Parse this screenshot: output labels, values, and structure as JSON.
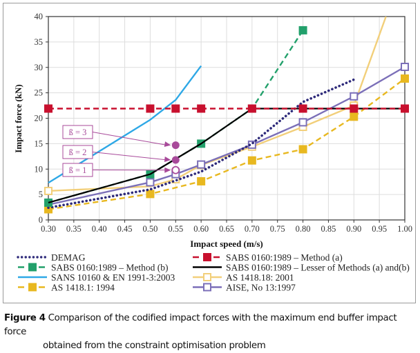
{
  "chart_data": {
    "type": "line",
    "title": "",
    "xlabel": "Impact speed (m/s)",
    "ylabel": "Impact force (kN)",
    "xlim": [
      0.3,
      1.0
    ],
    "ylim": [
      0,
      40
    ],
    "xticks": [
      "0.30",
      "0.35",
      "0.40",
      "0.45",
      "0.50",
      "0.55",
      "0.60",
      "0.65",
      "0.70",
      "0.75",
      "0.80",
      "0.85",
      "0.90",
      "0.95",
      "1.00"
    ],
    "yticks": [
      "0",
      "5",
      "10",
      "15",
      "20",
      "25",
      "30",
      "35",
      "40"
    ],
    "grid": true,
    "legend_position": "bottom",
    "series": [
      {
        "name": "DEMAG",
        "color": "#2e2a7a",
        "style": "dotted",
        "marker": "none",
        "x": [
          0.3,
          0.5,
          0.6,
          0.7,
          0.8,
          0.9
        ],
        "y": [
          2.4,
          6.0,
          9.5,
          15.0,
          23.2,
          27.6
        ]
      },
      {
        "name": "SABS 0160:1989 – Method (a)",
        "color": "#c8102e",
        "style": "dashed",
        "marker": "filled-square",
        "x": [
          0.3,
          0.5,
          0.55,
          0.6,
          0.7,
          0.8,
          0.9,
          1.0
        ],
        "y": [
          21.9,
          21.9,
          21.9,
          21.9,
          21.9,
          21.9,
          21.9,
          21.9
        ]
      },
      {
        "name": "SABS 0160:1989 – Method (b)",
        "color": "#22a06b",
        "style": "dashed",
        "marker": "filled-square",
        "x": [
          0.3,
          0.5,
          0.6,
          0.7,
          0.8
        ],
        "y": [
          3.4,
          9.0,
          15.0,
          21.9,
          37.3
        ]
      },
      {
        "name": "SABS 0160:1989 – Lesser of Methods (a) and(b)",
        "color": "#000000",
        "style": "solid",
        "marker": "none",
        "x": [
          0.3,
          0.5,
          0.6,
          0.7,
          0.8,
          0.9,
          1.0
        ],
        "y": [
          3.4,
          9.0,
          15.0,
          21.9,
          21.9,
          21.9,
          21.9
        ]
      },
      {
        "name": "SANS 10160 & EN 1991-3:2003",
        "color": "#2ea8e6",
        "style": "solid",
        "marker": "none",
        "x": [
          0.3,
          0.5,
          0.55,
          0.6
        ],
        "y": [
          7.3,
          19.7,
          23.6,
          30.3
        ]
      },
      {
        "name": "AS 1418.18: 2001",
        "color": "#f2cf7a",
        "style": "solid",
        "marker": "open-square",
        "x": [
          0.3,
          0.5,
          0.55,
          0.6,
          0.7,
          0.8,
          0.9,
          0.963
        ],
        "y": [
          5.7,
          6.6,
          8.0,
          10.8,
          14.4,
          18.3,
          22.5,
          40.0
        ],
        "marker_mask": [
          1,
          0,
          1,
          1,
          1,
          1,
          1,
          0
        ]
      },
      {
        "name": "AS 1418.1: 1994",
        "color": "#e8b820",
        "style": "dashed",
        "marker": "filled-square",
        "x": [
          0.3,
          0.5,
          0.6,
          0.7,
          0.8,
          0.9,
          1.0
        ],
        "y": [
          2.1,
          5.1,
          7.6,
          11.7,
          13.9,
          20.3,
          27.8
        ]
      },
      {
        "name": "AISE, No 13:1997",
        "color": "#7b6fb8",
        "style": "solid",
        "marker": "open-square",
        "x": [
          0.3,
          0.5,
          0.55,
          0.6,
          0.7,
          0.8,
          0.9,
          1.0
        ],
        "y": [
          3.0,
          7.4,
          9.0,
          10.9,
          14.8,
          19.2,
          24.3,
          30.1
        ],
        "marker_mask": [
          0,
          1,
          1,
          1,
          1,
          1,
          1,
          1
        ]
      }
    ],
    "annotations": [
      {
        "label": "ß = 3",
        "x": 0.55,
        "y": 14.7,
        "marker": "filled-circle"
      },
      {
        "label": "ß = 2",
        "x": 0.55,
        "y": 11.8,
        "marker": "filled-circle"
      },
      {
        "label": "ß = 1",
        "x": 0.55,
        "y": 9.8,
        "marker": "open-circle"
      }
    ],
    "annotation_color": "#a84a9a",
    "legend_order_left": [
      "DEMAG",
      "SABS 0160:1989 – Method (b)",
      "SANS 10160 & EN 1991-3:2003",
      "AS 1418.1: 1994"
    ],
    "legend_order_right": [
      "SABS 0160:1989 – Method (a)",
      "SABS 0160:1989 – Lesser of Methods (a) and(b)",
      "AS 1418.18: 2001",
      "AISE, No 13:1997"
    ]
  },
  "caption": {
    "label": "Figure 4",
    "text_line1": " Comparison of the codified impact forces with the maximum end buffer impact force",
    "text_line2": "obtained from the constraint optimisation problem"
  }
}
